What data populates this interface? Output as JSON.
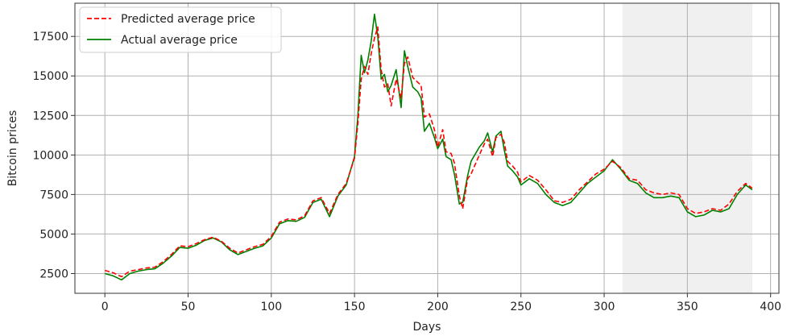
{
  "chart_data": {
    "type": "line",
    "title": "",
    "xlabel": "Days",
    "ylabel": "Bitcoin prices",
    "xlim": [
      -18,
      405
    ],
    "ylim": [
      1250,
      19600
    ],
    "xticks": [
      0,
      50,
      100,
      150,
      200,
      250,
      300,
      350,
      400
    ],
    "yticks": [
      2500,
      5000,
      7500,
      10000,
      12500,
      15000,
      17500
    ],
    "grid": true,
    "legend_position": "top-left",
    "highlight_span": [
      311,
      389
    ],
    "highlight_color": "#f0f0f0",
    "series": [
      {
        "name": "Predicted average price",
        "color": "#ff0000",
        "style": "dashed",
        "x": [
          0,
          5,
          10,
          15,
          20,
          25,
          30,
          35,
          40,
          45,
          50,
          55,
          60,
          65,
          70,
          75,
          80,
          85,
          90,
          95,
          100,
          105,
          110,
          115,
          120,
          125,
          130,
          135,
          140,
          145,
          150,
          152,
          154,
          156,
          158,
          160,
          162,
          164,
          166,
          168,
          170,
          172,
          175,
          178,
          180,
          182,
          185,
          188,
          190,
          192,
          195,
          198,
          200,
          203,
          205,
          208,
          210,
          213,
          215,
          218,
          220,
          225,
          228,
          230,
          233,
          235,
          238,
          240,
          242,
          245,
          248,
          250,
          255,
          260,
          265,
          270,
          275,
          280,
          285,
          290,
          295,
          300,
          305,
          310,
          315,
          320,
          325,
          330,
          335,
          340,
          345,
          350,
          355,
          360,
          365,
          370,
          375,
          380,
          385,
          389
        ],
        "y": [
          2700,
          2550,
          2300,
          2650,
          2750,
          2850,
          2900,
          3250,
          3700,
          4250,
          4200,
          4400,
          4650,
          4800,
          4550,
          4100,
          3800,
          4000,
          4200,
          4350,
          4850,
          5750,
          5950,
          5900,
          6150,
          7100,
          7300,
          6300,
          7500,
          8200,
          9800,
          12000,
          14800,
          15600,
          15100,
          16400,
          17400,
          18100,
          15400,
          14300,
          14500,
          13100,
          14800,
          13600,
          15800,
          16200,
          14900,
          14600,
          14400,
          12400,
          12600,
          11600,
          10500,
          11600,
          10200,
          10100,
          9500,
          7400,
          6600,
          8500,
          8800,
          10000,
          10700,
          11000,
          9900,
          11100,
          11300,
          10800,
          9600,
          9300,
          8900,
          8300,
          8700,
          8400,
          7800,
          7100,
          7000,
          7200,
          7800,
          8300,
          8800,
          9100,
          9600,
          9200,
          8500,
          8400,
          7800,
          7600,
          7500,
          7600,
          7500,
          6600,
          6300,
          6400,
          6600,
          6500,
          6900,
          7700,
          8200,
          7900
        ]
      },
      {
        "name": "Actual average price",
        "color": "#008000",
        "style": "solid",
        "x": [
          0,
          5,
          10,
          15,
          20,
          25,
          30,
          35,
          40,
          45,
          50,
          55,
          60,
          65,
          70,
          75,
          80,
          85,
          90,
          95,
          100,
          105,
          110,
          115,
          120,
          125,
          130,
          135,
          140,
          145,
          150,
          152,
          154,
          156,
          158,
          160,
          162,
          164,
          166,
          168,
          170,
          172,
          175,
          178,
          180,
          182,
          185,
          188,
          190,
          192,
          195,
          198,
          200,
          203,
          205,
          208,
          210,
          213,
          215,
          218,
          220,
          225,
          228,
          230,
          233,
          235,
          238,
          240,
          242,
          245,
          248,
          250,
          255,
          260,
          265,
          270,
          275,
          280,
          285,
          290,
          295,
          300,
          305,
          310,
          315,
          320,
          325,
          330,
          335,
          340,
          345,
          350,
          355,
          360,
          365,
          370,
          375,
          380,
          385,
          389
        ],
        "y": [
          2500,
          2350,
          2100,
          2500,
          2650,
          2750,
          2800,
          3150,
          3600,
          4150,
          4100,
          4300,
          4600,
          4750,
          4500,
          4000,
          3700,
          3900,
          4100,
          4250,
          4750,
          5650,
          5850,
          5800,
          6050,
          7000,
          7200,
          6100,
          7400,
          8100,
          9900,
          12500,
          16300,
          15200,
          16000,
          17200,
          18900,
          17500,
          14800,
          15100,
          14000,
          14400,
          15400,
          13000,
          16600,
          15600,
          14300,
          14000,
          13600,
          11500,
          12000,
          11100,
          10400,
          11000,
          9900,
          9700,
          8800,
          6900,
          7000,
          8700,
          9600,
          10500,
          10900,
          11400,
          10200,
          11200,
          11500,
          10300,
          9300,
          9000,
          8600,
          8100,
          8500,
          8200,
          7500,
          7000,
          6800,
          7000,
          7600,
          8200,
          8600,
          9000,
          9700,
          9100,
          8400,
          8200,
          7600,
          7300,
          7300,
          7400,
          7300,
          6400,
          6100,
          6200,
          6500,
          6400,
          6600,
          7500,
          8100,
          7800
        ]
      }
    ]
  }
}
